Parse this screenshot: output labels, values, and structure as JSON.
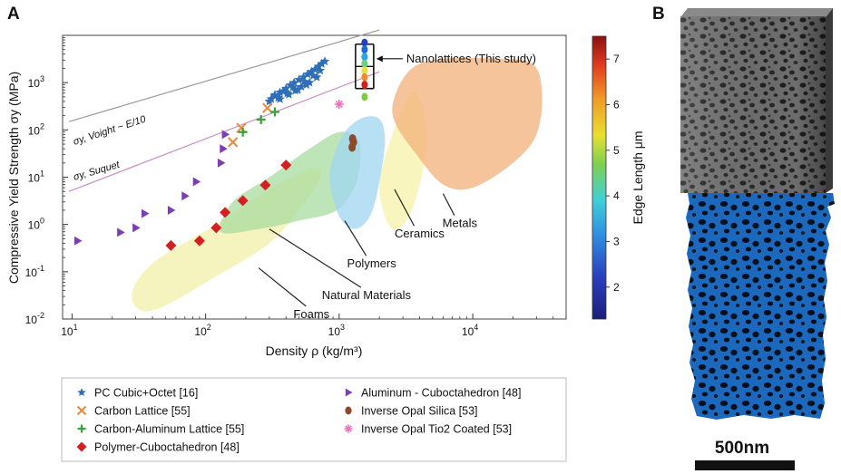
{
  "panel_a_label": "A",
  "panel_b_label": "B",
  "chart_data": {
    "type": "scatter",
    "xscale": "log",
    "yscale": "log",
    "xlim": [
      8.5,
      50000
    ],
    "ylim": [
      0.01,
      10000
    ],
    "xlabel": "Density ρ (kg/m³)",
    "ylabel": "Compressive Yield Strength σy (MPa)",
    "x_ticks": [
      {
        "value": 10,
        "base": "10",
        "exp": "1"
      },
      {
        "value": 100,
        "base": "10",
        "exp": "2"
      },
      {
        "value": 1000,
        "base": "10",
        "exp": "3"
      },
      {
        "value": 10000,
        "base": "10",
        "exp": "4"
      }
    ],
    "y_ticks": [
      {
        "value": 0.01,
        "label": "10",
        "exp": "-2"
      },
      {
        "value": 0.1,
        "label": "10",
        "exp": "-1"
      },
      {
        "value": 1,
        "label": "10",
        "exp": "0"
      },
      {
        "value": 10,
        "label": "10",
        "exp": "1"
      },
      {
        "value": 100,
        "label": "10",
        "exp": "2"
      },
      {
        "value": 1000,
        "label": "10",
        "exp": "3"
      }
    ],
    "bounds": [
      {
        "name": "voight",
        "label": "σy, Voight ~ E/10",
        "color": "#9a9a9a",
        "points": [
          [
            9.5,
            150
          ],
          [
            2000,
            13000
          ]
        ]
      },
      {
        "name": "suquet",
        "label": "σy, Suquet",
        "color": "#c88fc8",
        "points": [
          [
            9.5,
            5
          ],
          [
            2000,
            1700
          ]
        ]
      }
    ],
    "regions": [
      {
        "name": "foams",
        "label": "Foams",
        "color": "#f3f0a8",
        "polygon": [
          [
            40,
            0.15
          ],
          [
            120,
            1
          ],
          [
            250,
            4
          ],
          [
            500,
            12
          ],
          [
            700,
            15
          ],
          [
            700,
            8
          ],
          [
            500,
            2
          ],
          [
            300,
            0.4
          ],
          [
            120,
            0.08
          ],
          [
            40,
            0.015
          ],
          [
            28,
            0.03
          ]
        ]
      },
      {
        "name": "natural-materials",
        "label": "Natural Materials",
        "color": "#a8dca0",
        "polygon": [
          [
            130,
            0.7
          ],
          [
            160,
            3
          ],
          [
            300,
            10
          ],
          [
            600,
            40
          ],
          [
            1000,
            90
          ],
          [
            1400,
            60
          ],
          [
            1400,
            12
          ],
          [
            1200,
            4
          ],
          [
            900,
            1.8
          ],
          [
            500,
            1.2
          ],
          [
            250,
            0.8
          ]
        ]
      },
      {
        "name": "polymers",
        "label": "Polymers",
        "color": "#9fd6f0",
        "polygon": [
          [
            900,
            25
          ],
          [
            1100,
            90
          ],
          [
            1500,
            180
          ],
          [
            2000,
            170
          ],
          [
            2200,
            60
          ],
          [
            2000,
            8
          ],
          [
            1700,
            1.5
          ],
          [
            1300,
            0.8
          ],
          [
            1000,
            1.5
          ],
          [
            850,
            8
          ]
        ]
      },
      {
        "name": "ceramics",
        "label": "Ceramics",
        "color": "#f6f2a8",
        "polygon": [
          [
            2000,
            6
          ],
          [
            2500,
            80
          ],
          [
            3500,
            600
          ],
          [
            4200,
            300
          ],
          [
            4500,
            40
          ],
          [
            3500,
            2
          ],
          [
            2500,
            0.8
          ]
        ]
      },
      {
        "name": "metals",
        "label": "Metals",
        "color": "#f3b07a",
        "polygon": [
          [
            2600,
            500
          ],
          [
            3500,
            2000
          ],
          [
            6000,
            3200
          ],
          [
            15000,
            3200
          ],
          [
            28000,
            2500
          ],
          [
            33000,
            600
          ],
          [
            30000,
            80
          ],
          [
            20000,
            20
          ],
          [
            10000,
            6
          ],
          [
            6000,
            7
          ],
          [
            3800,
            30
          ],
          [
            2600,
            150
          ]
        ]
      }
    ],
    "region_labels": [
      {
        "name": "foams",
        "text": "Foams",
        "anchor": [
          620,
          0.012
        ],
        "pointer_to": [
          250,
          0.12
        ]
      },
      {
        "name": "natural-materials",
        "text": "Natural Materials",
        "anchor": [
          1600,
          0.03
        ],
        "pointer_to": [
          300,
          0.8
        ]
      },
      {
        "name": "polymers",
        "text": "Polymers",
        "anchor": [
          1750,
          0.14
        ],
        "pointer_to": [
          1100,
          1.2
        ]
      },
      {
        "name": "ceramics",
        "text": "Ceramics",
        "anchor": [
          4000,
          0.6
        ],
        "pointer_to": [
          2600,
          5.5
        ]
      },
      {
        "name": "metals",
        "text": "Metals",
        "anchor": [
          8000,
          1.0
        ],
        "pointer_to": [
          6000,
          4.5
        ]
      }
    ],
    "series": [
      {
        "name": "PC Cubic+Octet [16]",
        "marker": "star",
        "color": "#2f6fb5",
        "x": [
          300,
          330,
          360,
          400,
          430,
          460,
          500,
          540,
          580,
          620,
          660,
          700,
          740,
          780,
          360,
          420,
          470,
          520,
          600,
          680,
          330,
          380,
          450,
          550,
          640,
          720,
          310,
          350,
          410,
          490,
          570
        ],
        "y": [
          400,
          520,
          620,
          750,
          880,
          1000,
          1150,
          1300,
          1500,
          1700,
          1900,
          2200,
          2500,
          2800,
          450,
          560,
          680,
          820,
          1000,
          1300,
          550,
          650,
          800,
          1050,
          1400,
          1800,
          450,
          480,
          600,
          700,
          900
        ]
      },
      {
        "name": "Carbon Lattice [55]",
        "marker": "x",
        "color": "#e8893c",
        "x": [
          160,
          185,
          290
        ],
        "y": [
          55,
          110,
          290
        ]
      },
      {
        "name": "Carbon-Aluminum Lattice [55]",
        "marker": "plus",
        "color": "#3aa23a",
        "x": [
          190,
          260,
          330
        ],
        "y": [
          90,
          165,
          240
        ]
      },
      {
        "name": "Polymer-Cuboctahedron [48]",
        "marker": "diamond",
        "color": "#d42020",
        "x": [
          55,
          90,
          120,
          140,
          190,
          280,
          400
        ],
        "y": [
          0.36,
          0.45,
          0.85,
          1.8,
          3.2,
          6.8,
          18
        ]
      },
      {
        "name": "Aluminum - Cuboctahedron [48]",
        "marker": "triangle-right",
        "color": "#7a3fb0",
        "x": [
          11,
          23,
          30,
          35,
          55,
          70,
          85,
          130,
          135,
          140
        ],
        "y": [
          0.45,
          0.68,
          0.85,
          1.7,
          2,
          4,
          8,
          20,
          40,
          80
        ]
      },
      {
        "name": "Inverse Opal Silica [53]",
        "marker": "circle",
        "color": "#8b4a2c",
        "x": [
          1250,
          1280,
          1260
        ],
        "y": [
          43,
          55,
          65
        ]
      },
      {
        "name": "Inverse Opal Tio2 Coated [53]",
        "marker": "plus-diag",
        "color": "#f070c0",
        "x": [
          1000
        ],
        "y": [
          350
        ]
      }
    ],
    "nanolattices": {
      "label": "Nanolattices (This study)",
      "x": 1550,
      "points": [
        {
          "y": 7000,
          "color": "#2040c0"
        },
        {
          "y": 5000,
          "color": "#1e6ad8"
        },
        {
          "y": 3500,
          "color": "#2aa6e0"
        },
        {
          "y": 2500,
          "color": "#6cd07a"
        },
        {
          "y": 1800,
          "color": "#e8e040"
        },
        {
          "y": 1300,
          "color": "#f08a30"
        },
        {
          "y": 900,
          "color": "#d02020"
        },
        {
          "y": 500,
          "color": "#80cc40"
        }
      ],
      "bar_range": [
        750,
        6500
      ]
    },
    "colorbar": {
      "label": "Edge Length μm",
      "range": [
        1.3,
        7.5
      ],
      "ticks": [
        "2",
        "3",
        "4",
        "5",
        "6",
        "7"
      ],
      "tick_values": [
        2,
        3,
        4,
        5,
        6,
        7
      ]
    },
    "legend_columns": [
      [
        "PC Cubic+Octet [16]",
        "Carbon Lattice [55]",
        "Carbon-Aluminum Lattice [55]",
        "Polymer-Cuboctahedron [48]"
      ],
      [
        "Aluminum - Cuboctahedron [48]",
        "Inverse Opal Silica [53]",
        "Inverse Opal Tio2 Coated [53]"
      ]
    ]
  },
  "scale_bar_label": "500nm",
  "colors": {
    "foam_top": "#4a4a4a",
    "foam_bottom": "#1a64b8"
  }
}
